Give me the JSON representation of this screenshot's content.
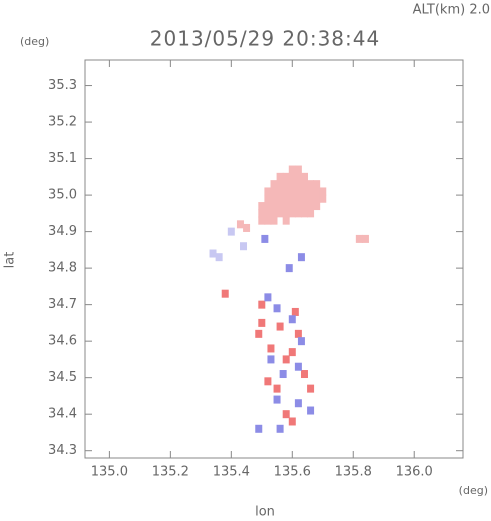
{
  "chart_data": {
    "type": "scatter",
    "title": "2013/05/29 20:38:44",
    "subtitle": "ALT(km) 2.0",
    "y_unit": "(deg)",
    "x_unit": "(deg)",
    "xlabel": "lon",
    "ylabel": "lat",
    "xlim": [
      134.92,
      136.16
    ],
    "ylim": [
      34.28,
      35.37
    ],
    "xticks": [
      {
        "value": 135,
        "label": "135.0"
      },
      135.2,
      135.4,
      135.6,
      135.8,
      {
        "value": 136,
        "label": "136.0"
      }
    ],
    "yticks": [
      34.3,
      34.4,
      34.5,
      34.6,
      34.7,
      34.8,
      34.9,
      {
        "value": 35,
        "label": "35.0"
      },
      35.1,
      35.2,
      35.3
    ],
    "series": [
      {
        "color": "#f5b8b8",
        "x": [
          135.6,
          135.62,
          135.56,
          135.58,
          135.6,
          135.62,
          135.64,
          135.54,
          135.56,
          135.58,
          135.6,
          135.62,
          135.64,
          135.66,
          135.68,
          135.52,
          135.54,
          135.56,
          135.58,
          135.6,
          135.62,
          135.64,
          135.66,
          135.68,
          135.7,
          135.52,
          135.54,
          135.56,
          135.58,
          135.6,
          135.62,
          135.64,
          135.66,
          135.68,
          135.7,
          135.5,
          135.52,
          135.54,
          135.56,
          135.58,
          135.6,
          135.62,
          135.64,
          135.66,
          135.68,
          135.5,
          135.52,
          135.54,
          135.56,
          135.58,
          135.6,
          135.62,
          135.64,
          135.66,
          135.5,
          135.52,
          135.54,
          135.58,
          135.82,
          135.84,
          135.45,
          135.43
        ],
        "values": [
          35.07,
          35.07,
          35.05,
          35.05,
          35.05,
          35.05,
          35.05,
          35.03,
          35.03,
          35.03,
          35.03,
          35.03,
          35.03,
          35.03,
          35.03,
          35.01,
          35.01,
          35.01,
          35.01,
          35.01,
          35.01,
          35.01,
          35.01,
          35.01,
          35.01,
          34.99,
          34.99,
          34.99,
          34.99,
          34.99,
          34.99,
          34.99,
          34.99,
          34.99,
          34.99,
          34.97,
          34.97,
          34.97,
          34.97,
          34.97,
          34.97,
          34.97,
          34.97,
          34.97,
          34.97,
          34.95,
          34.95,
          34.95,
          34.95,
          34.95,
          34.95,
          34.95,
          34.95,
          34.95,
          34.93,
          34.93,
          34.93,
          34.93,
          34.88,
          34.88,
          34.91,
          34.92
        ]
      },
      {
        "color": "#f07878",
        "x": [
          135.5,
          135.49,
          135.53,
          135.56,
          135.61,
          135.62,
          135.58,
          135.52,
          135.55,
          135.66,
          135.64,
          135.58,
          135.6,
          135.5,
          135.6,
          135.38
        ],
        "values": [
          34.7,
          34.62,
          34.58,
          34.64,
          34.68,
          34.62,
          34.55,
          34.49,
          34.47,
          34.47,
          34.51,
          34.4,
          34.38,
          34.65,
          34.57,
          34.73
        ]
      },
      {
        "color": "#8c8ce6",
        "x": [
          135.52,
          135.55,
          135.6,
          135.63,
          135.53,
          135.57,
          135.62,
          135.55,
          135.62,
          135.66,
          135.56,
          135.49,
          135.59,
          135.63,
          135.51
        ],
        "values": [
          34.72,
          34.69,
          34.66,
          34.6,
          34.55,
          34.51,
          34.53,
          34.44,
          34.43,
          34.41,
          34.36,
          34.36,
          34.8,
          34.83,
          34.88
        ]
      },
      {
        "color": "#c8c8f2",
        "x": [
          135.34,
          135.36,
          135.44,
          135.4
        ],
        "values": [
          34.84,
          34.83,
          34.86,
          34.9
        ]
      }
    ]
  }
}
